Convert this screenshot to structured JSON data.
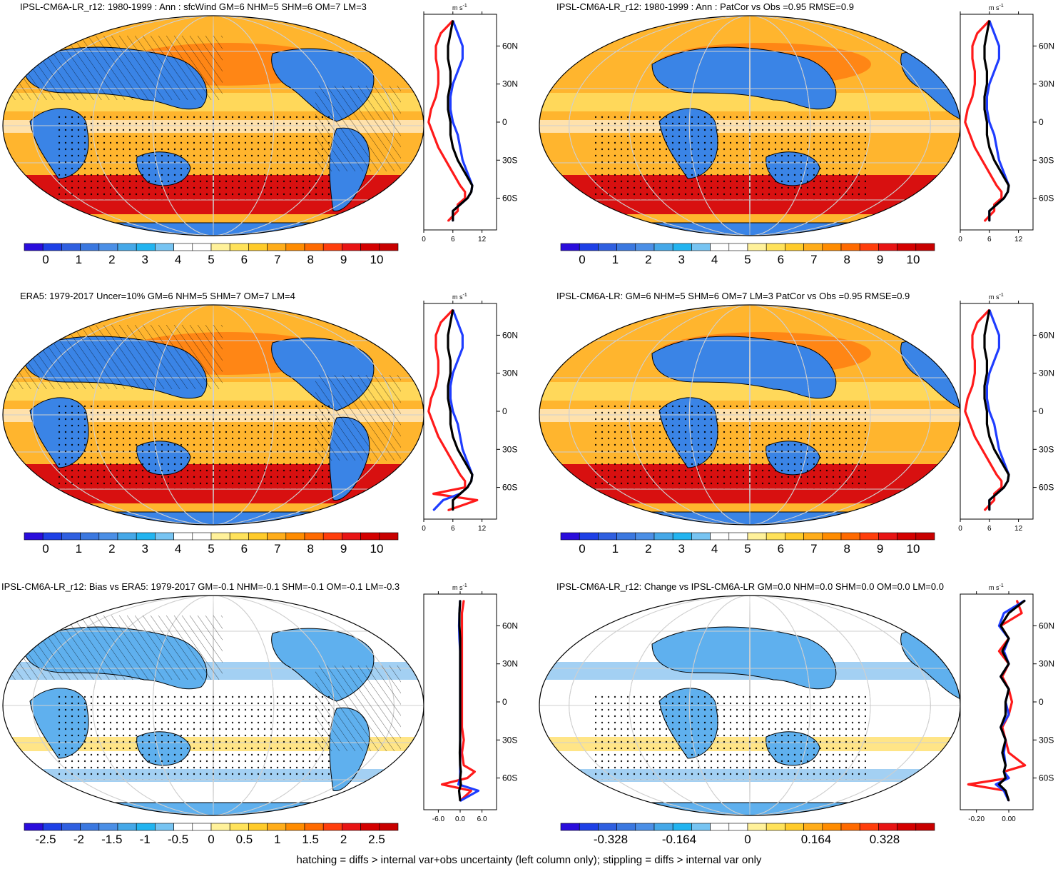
{
  "footer": "hatching = diffs > internal var+obs uncertainty (left column only); stippling = diffs > internal var only",
  "zonal_y_ticks": [
    "60N",
    "30N",
    "0",
    "30S",
    "60S"
  ],
  "zonal_units": "m s",
  "zonal_units_exp": "-1",
  "colors": {
    "model": "#000000",
    "northern_high": "#1f3dff",
    "southern_red": "#ff1a1a",
    "map_edge": "#000000",
    "grid": "#cfcfcf"
  },
  "scale_wind": [
    "#2a0ddc",
    "#1e40e6",
    "#2f5fe0",
    "#3b78e0",
    "#4b8fe6",
    "#45a8e8",
    "#22b4f0",
    "#77c4f2",
    "#ffffff",
    "#ffffff",
    "#fff19a",
    "#ffe25a",
    "#ffcb2a",
    "#ffad1a",
    "#ff8c00",
    "#ff6a00",
    "#ff3e0c",
    "#e81414",
    "#d40000",
    "#c80000"
  ],
  "scale_diff": [
    "#2a0ddc",
    "#1e40e6",
    "#2f5fe0",
    "#3b78e0",
    "#4b8fe6",
    "#45a8e8",
    "#22b4f0",
    "#77c4f2",
    "#ffffff",
    "#ffffff",
    "#fff19a",
    "#ffe25a",
    "#ffcb2a",
    "#ffad1a",
    "#ff8c00",
    "#ff6a00",
    "#ff3e0c",
    "#e81414",
    "#d40000",
    "#c80000"
  ],
  "panels": [
    {
      "title": "IPSL-CM6A-LR_r12: 1980-1999 : Ann : sfcWind GM=6 NHM=5 SHM=6 OM=7 LM=3",
      "colorbar_labels": [
        "0",
        "1",
        "2",
        "3",
        "4",
        "5",
        "6",
        "7",
        "8",
        "9",
        "10"
      ],
      "zonal_x_ticks": [
        "0",
        "6",
        "12"
      ]
    },
    {
      "title": "IPSL-CM6A-LR_r12: 1980-1999 : Ann : PatCor vs Obs =0.95 RMSE=0.9",
      "colorbar_labels": [
        "0",
        "1",
        "2",
        "3",
        "4",
        "5",
        "6",
        "7",
        "8",
        "9",
        "10"
      ],
      "zonal_x_ticks": [
        "0",
        "6",
        "12"
      ]
    },
    {
      "title": "ERA5: 1979-2017 Uncer=10% GM=6 NHM=5 SHM=7 OM=7 LM=4",
      "colorbar_labels": [
        "0",
        "1",
        "2",
        "3",
        "4",
        "5",
        "6",
        "7",
        "8",
        "9",
        "10"
      ],
      "zonal_x_ticks": [
        "0",
        "6",
        "12"
      ]
    },
    {
      "title": "IPSL-CM6A-LR: GM=6 NHM=5 SHM=6 OM=7 LM=3 PatCor vs Obs =0.95 RMSE=0.9",
      "colorbar_labels": [
        "0",
        "1",
        "2",
        "3",
        "4",
        "5",
        "6",
        "7",
        "8",
        "9",
        "10"
      ],
      "zonal_x_ticks": [
        "0",
        "6",
        "12"
      ]
    },
    {
      "title": "IPSL-CM6A-LR_r12: Bias vs ERA5: 1979-2017 GM=-0.1 NHM=-0.1 SHM=-0.1 OM=-0.1 LM=-0.3",
      "colorbar_labels": [
        "-2.5",
        "-2",
        "-1.5",
        "-1",
        "-0.5",
        "0",
        "0.5",
        "1",
        "1.5",
        "2",
        "2.5"
      ],
      "zonal_x_ticks": [
        "-6.0",
        "0.0",
        "6.0"
      ]
    },
    {
      "title": "IPSL-CM6A-LR_r12: Change vs IPSL-CM6A-LR GM=0.0 NHM=0.0 SHM=0.0 OM=0.0 LM=0.0",
      "colorbar_labels": [
        "-0.328",
        "-0.164",
        "0",
        "0.164",
        "0.328"
      ],
      "zonal_x_ticks": [
        "-0.20",
        "0.00"
      ]
    }
  ],
  "chart_data": [
    {
      "type": "line",
      "title": "IPSL-CM6A-LR_r12: 1980-1999 : Ann : sfcWind GM=6 NHM=5 SHM=6 OM=7 LM=3",
      "xlabel": "m s-1",
      "xlim": [
        0,
        15
      ],
      "ylim": [
        -85,
        85
      ],
      "y_tick_labels": [
        "60N",
        "30N",
        "0",
        "30S",
        "60S"
      ],
      "x_tick_labels": [
        "0",
        "6",
        "12"
      ],
      "y": [
        80,
        70,
        60,
        50,
        40,
        30,
        20,
        10,
        0,
        -10,
        -20,
        -30,
        -40,
        -50,
        -55,
        -60,
        -65,
        -70,
        -78
      ],
      "series": [
        {
          "values": [
            6,
            5.5,
            5,
            5,
            5.5,
            5.5,
            5,
            5,
            5.5,
            5.5,
            6,
            7,
            8.5,
            10,
            9.8,
            9,
            7.5,
            6,
            6
          ]
        },
        {
          "values": [
            6,
            7,
            8,
            8,
            7,
            6,
            5.5,
            5.5,
            6,
            7,
            7.5,
            8,
            9,
            10,
            9.8,
            9,
            7.5,
            6,
            6
          ]
        },
        {
          "values": [
            6,
            3.5,
            2.5,
            2.5,
            3,
            3,
            2.5,
            1.5,
            1,
            2,
            3,
            4.5,
            6,
            7.5,
            8.5,
            8.5,
            7,
            7,
            5
          ]
        }
      ]
    },
    {
      "type": "line",
      "title": "IPSL-CM6A-LR_r12: 1980-1999 : Ann : PatCor vs Obs =0.95 RMSE=0.9",
      "xlabel": "m s-1",
      "xlim": [
        0,
        15
      ],
      "ylim": [
        -85,
        85
      ],
      "y_tick_labels": [
        "60N",
        "30N",
        "0",
        "30S",
        "60S"
      ],
      "x_tick_labels": [
        "0",
        "6",
        "12"
      ],
      "y": [
        80,
        70,
        60,
        50,
        40,
        30,
        20,
        10,
        0,
        -10,
        -20,
        -30,
        -40,
        -50,
        -55,
        -60,
        -65,
        -70,
        -78
      ],
      "series": [
        {
          "values": [
            6,
            5.5,
            5,
            5,
            5.5,
            5.5,
            5,
            5,
            5.5,
            5.5,
            6,
            7,
            8.5,
            10,
            9.8,
            9,
            7.5,
            6,
            6
          ]
        },
        {
          "values": [
            6,
            7,
            8,
            8,
            7,
            6,
            5.5,
            5.5,
            6,
            7,
            7.5,
            8,
            9,
            10,
            9.8,
            9,
            7.5,
            6,
            6
          ]
        },
        {
          "values": [
            6,
            3.5,
            2.5,
            2.5,
            3,
            3,
            2.5,
            1.5,
            1,
            2,
            3,
            4.5,
            6,
            7.5,
            8.5,
            8.5,
            7,
            7,
            5
          ]
        }
      ]
    },
    {
      "type": "line",
      "title": "ERA5: 1979-2017 Uncer=10% GM=6 NHM=5 SHM=7 OM=7 LM=4",
      "xlabel": "m s-1",
      "xlim": [
        0,
        15
      ],
      "ylim": [
        -85,
        85
      ],
      "y_tick_labels": [
        "60N",
        "30N",
        "0",
        "30S",
        "60S"
      ],
      "x_tick_labels": [
        "0",
        "6",
        "12"
      ],
      "y": [
        80,
        70,
        60,
        50,
        40,
        30,
        20,
        10,
        0,
        -10,
        -20,
        -30,
        -40,
        -50,
        -55,
        -60,
        -65,
        -70,
        -78
      ],
      "series": [
        {
          "values": [
            6,
            5.5,
            5,
            5,
            5.5,
            5.5,
            5,
            5,
            5.5,
            5.5,
            6,
            7,
            8.5,
            10,
            9.8,
            9,
            7.5,
            6,
            6
          ]
        },
        {
          "values": [
            6,
            7,
            8,
            8,
            7,
            6,
            5.5,
            5.5,
            6,
            7,
            7.5,
            8,
            9,
            10,
            9.8,
            9,
            7.5,
            4,
            2
          ]
        },
        {
          "values": [
            6,
            3.5,
            2.5,
            2.5,
            3,
            3,
            2.5,
            1.5,
            1,
            2,
            3,
            4.5,
            6,
            7.5,
            8.5,
            8.5,
            2,
            11,
            5
          ]
        }
      ]
    },
    {
      "type": "line",
      "title": "IPSL-CM6A-LR: GM=6 NHM=5 SHM=6 OM=7 LM=3 PatCor vs Obs =0.95 RMSE=0.9",
      "xlabel": "m s-1",
      "xlim": [
        0,
        15
      ],
      "ylim": [
        -85,
        85
      ],
      "y_tick_labels": [
        "60N",
        "30N",
        "0",
        "30S",
        "60S"
      ],
      "x_tick_labels": [
        "0",
        "6",
        "12"
      ],
      "y": [
        80,
        70,
        60,
        50,
        40,
        30,
        20,
        10,
        0,
        -10,
        -20,
        -30,
        -40,
        -50,
        -55,
        -60,
        -65,
        -70,
        -78
      ],
      "series": [
        {
          "values": [
            6,
            5.5,
            5,
            5,
            5.5,
            5.5,
            5,
            5,
            5.5,
            5.5,
            6,
            7,
            8.5,
            10,
            9.8,
            9,
            7.5,
            6,
            6
          ]
        },
        {
          "values": [
            6,
            7,
            8,
            8,
            7,
            6,
            5.5,
            5.5,
            6,
            7,
            7.5,
            8,
            9,
            10,
            9.8,
            9,
            7.5,
            6,
            6
          ]
        },
        {
          "values": [
            6,
            3.5,
            2.5,
            2.5,
            3,
            3,
            2.5,
            1.5,
            1,
            2,
            3,
            4.5,
            6,
            7.5,
            8.5,
            8.5,
            7,
            7,
            5
          ]
        }
      ]
    },
    {
      "type": "line",
      "title": "IPSL-CM6A-LR_r12: Bias vs ERA5: 1979-2017 GM=-0.1 NHM=-0.1 SHM=-0.1 OM=-0.1 LM=-0.3",
      "xlabel": "m s-1",
      "xlim": [
        -10,
        10
      ],
      "ylim": [
        -85,
        85
      ],
      "y_tick_labels": [
        "60N",
        "30N",
        "0",
        "30S",
        "60S"
      ],
      "x_tick_labels": [
        "-6.0",
        "0.0",
        "6.0"
      ],
      "y": [
        80,
        70,
        60,
        50,
        40,
        30,
        20,
        10,
        0,
        -10,
        -20,
        -30,
        -40,
        -50,
        -55,
        -60,
        -65,
        -70,
        -78
      ],
      "series": [
        {
          "values": [
            0,
            -0.2,
            -0.2,
            0,
            0,
            0,
            0,
            0,
            0,
            0,
            0,
            0,
            -0.1,
            0,
            0.2,
            0,
            0.2,
            -0.3,
            0
          ]
        },
        {
          "values": [
            0,
            -0.2,
            -0.3,
            -0.2,
            0,
            0,
            0,
            0,
            0,
            0,
            0,
            0,
            0,
            0,
            0,
            0,
            -0.5,
            5,
            0
          ]
        },
        {
          "values": [
            1,
            0.5,
            0.5,
            0.5,
            0.5,
            0.5,
            0.5,
            0.5,
            0.5,
            0.5,
            0.5,
            1,
            0.5,
            1,
            4,
            2,
            -5,
            3,
            0
          ]
        }
      ]
    },
    {
      "type": "line",
      "title": "IPSL-CM6A-LR_r12: Change vs IPSL-CM6A-LR GM=0.0 NHM=0.0 SHM=0.0 OM=0.0 LM=0.0",
      "xlabel": "m s-1",
      "xlim": [
        -0.3,
        0.15
      ],
      "ylim": [
        -85,
        85
      ],
      "y_tick_labels": [
        "60N",
        "30N",
        "0",
        "30S",
        "60S"
      ],
      "x_tick_labels": [
        "-0.20",
        "0.00"
      ],
      "y": [
        80,
        70,
        60,
        50,
        40,
        30,
        20,
        10,
        0,
        -10,
        -20,
        -30,
        -40,
        -50,
        -55,
        -60,
        -65,
        -70,
        -78
      ],
      "series": [
        {
          "values": [
            0.1,
            0,
            -0.05,
            0,
            -0.04,
            0,
            -0.05,
            0,
            -0.02,
            -0.02,
            -0.05,
            -0.02,
            -0.04,
            -0.02,
            -0.03,
            -0.02,
            -0.06,
            -0.02,
            0
          ]
        },
        {
          "values": [
            0.1,
            -0.03,
            -0.06,
            0,
            -0.03,
            0,
            -0.05,
            0,
            -0.02,
            0,
            -0.05,
            -0.02,
            -0.03,
            -0.02,
            -0.03,
            0,
            -0.08,
            -0.03,
            0
          ]
        },
        {
          "values": [
            0.05,
            0.08,
            -0.05,
            0,
            -0.06,
            0,
            -0.04,
            0,
            0.02,
            0,
            -0.04,
            -0.02,
            0,
            0.1,
            -0.03,
            0,
            -0.25,
            -0.02,
            0
          ]
        }
      ]
    }
  ]
}
